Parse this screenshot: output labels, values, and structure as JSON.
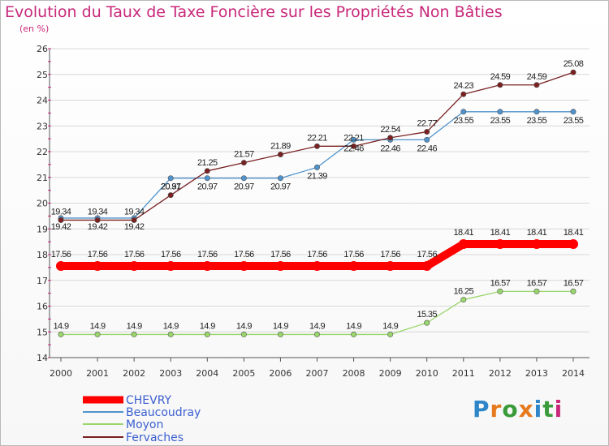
{
  "title": "Evolution du Taux de Taxe Foncière sur les Propriétés Non Bâties",
  "unit": "(en %)",
  "logo": {
    "text": "Proxiti",
    "colors": [
      "#2e86c9",
      "#e57a1e",
      "#3a9b3a",
      "#e57a1e",
      "#2e86c9",
      "#3a9b3a",
      "#c8287a"
    ]
  },
  "chart_data": {
    "type": "line",
    "title": "Evolution du Taux de Taxe Foncière sur les Propriétés Non Bâties",
    "ylabel": "(en %)",
    "x": [
      "2000",
      "2001",
      "2002",
      "2003",
      "2004",
      "2005",
      "2006",
      "2007",
      "2008",
      "2009",
      "2010",
      "2011",
      "2012",
      "2013",
      "2014"
    ],
    "ylim": [
      14,
      26
    ],
    "yticks": [
      "14",
      "15",
      "16",
      "17",
      "18",
      "19",
      "20",
      "21",
      "22",
      "23",
      "24",
      "25",
      "26"
    ],
    "grid": "horizontal",
    "legend_position": "bottom-left",
    "series": [
      {
        "name": "CHEVRY",
        "color": "#ff0000",
        "labels_above": true,
        "values": [
          17.56,
          17.56,
          17.56,
          17.56,
          17.56,
          17.56,
          17.56,
          17.56,
          17.56,
          17.56,
          17.56,
          18.41,
          18.41,
          18.41,
          18.41
        ],
        "labels": [
          "17.56",
          "17.56",
          "17.56",
          "17.56",
          "17.56",
          "17.56",
          "17.56",
          "17.56",
          "17.56",
          "17.56",
          "17.56",
          "18.41",
          "18.41",
          "18.41",
          "18.41"
        ]
      },
      {
        "name": "Beaucoudray",
        "color": "#4f93cc",
        "labels_above": false,
        "values": [
          19.42,
          19.42,
          19.42,
          20.97,
          20.97,
          20.97,
          20.97,
          21.39,
          22.46,
          22.46,
          22.46,
          23.55,
          23.55,
          23.55,
          23.55
        ],
        "labels": [
          "19.42",
          "19.42",
          "19.42",
          "20.97",
          "20.97",
          "20.97",
          "20.97",
          "21.39",
          "22.46",
          "22.46",
          "22.46",
          "23.55",
          "23.55",
          "23.55",
          "23.55"
        ]
      },
      {
        "name": "Moyon",
        "color": "#99d66b",
        "labels_above": true,
        "values": [
          14.9,
          14.9,
          14.9,
          14.9,
          14.9,
          14.9,
          14.9,
          14.9,
          14.9,
          14.9,
          15.35,
          16.25,
          16.57,
          16.57,
          16.57
        ],
        "labels": [
          "14.9",
          "14.9",
          "14.9",
          "14.9",
          "14.9",
          "14.9",
          "14.9",
          "14.9",
          "14.9",
          "14.9",
          "15.35",
          "16.25",
          "16.57",
          "16.57",
          "16.57"
        ]
      },
      {
        "name": "Fervaches",
        "color": "#7a2020",
        "labels_above": true,
        "values": [
          19.34,
          19.34,
          19.34,
          20.31,
          21.25,
          21.57,
          21.89,
          22.21,
          22.21,
          22.54,
          22.77,
          24.23,
          24.59,
          24.59,
          25.08
        ],
        "labels": [
          "19.34",
          "19.34",
          "19.34",
          "20.31",
          "21.25",
          "21.57",
          "21.89",
          "22.21",
          "22.21",
          "22.54",
          "22.77",
          "24.23",
          "24.59",
          "24.59",
          "25.08"
        ]
      }
    ]
  }
}
